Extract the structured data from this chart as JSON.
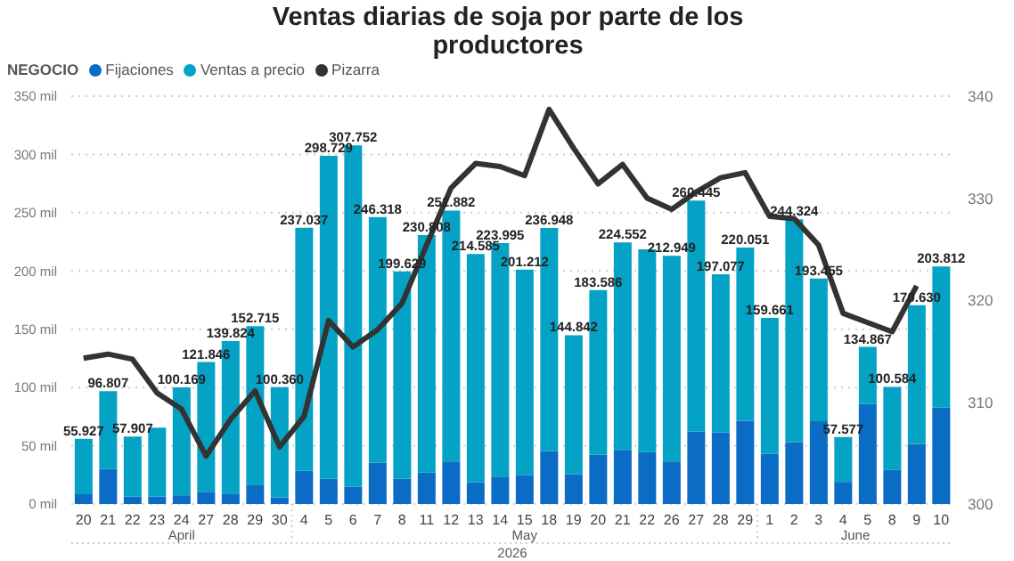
{
  "chart_data": {
    "type": "bar",
    "title": "Ventas diarias de soja por parte de los productores",
    "legend_title": "NEGOCIO",
    "legend": "top left",
    "stacked": true,
    "grid": "y",
    "marker": "none",
    "data_labels": false,
    "categories": [
      "20",
      "21",
      "22",
      "23",
      "24",
      "27",
      "28",
      "29",
      "30",
      "4",
      "5",
      "6",
      "7",
      "8",
      "11",
      "12",
      "13",
      "14",
      "15",
      "18",
      "19",
      "20",
      "21",
      "22",
      "26",
      "27",
      "28",
      "29",
      "1",
      "2",
      "3",
      "4",
      "5",
      "8",
      "9",
      "10"
    ],
    "series": [
      {
        "name": "Fijaciones",
        "color": "#0a6cc4",
        "values": [
          8.5,
          30,
          6.5,
          6.5,
          7.5,
          10.5,
          9,
          16,
          5.5,
          28.5,
          21.5,
          15,
          35.5,
          21.5,
          27,
          36.5,
          18.5,
          23.5,
          25,
          45.5,
          25.5,
          42.5,
          46.5,
          44.5,
          36.5,
          62,
          61.5,
          71.5,
          43,
          53,
          71,
          19,
          86,
          29.5,
          51.5,
          83
        ]
      },
      {
        "name": "Ventas a precio",
        "color": "#04a3c6",
        "values": [
          47.427,
          66.807,
          51.407,
          59,
          92.669,
          111.346,
          130.824,
          136.715,
          94.86,
          208.537,
          277.229,
          292.752,
          210.818,
          178.129,
          203.808,
          215.382,
          196.085,
          200.495,
          176.212,
          191.448,
          119.342,
          141.086,
          178.052,
          174,
          176.449,
          198.445,
          135.577,
          148.551,
          116.661,
          191.324,
          122.455,
          38.577,
          48.867,
          71.084,
          119.13,
          120.812
        ]
      },
      {
        "name": "Pizarra",
        "type": "line",
        "axis": "y2",
        "color": "#333333",
        "values": [
          314.3,
          314.7,
          314.2,
          310.9,
          309.3,
          304.7,
          308.3,
          311.1,
          305.6,
          308.6,
          318,
          315.4,
          317.1,
          319.7,
          325.4,
          331,
          333.4,
          333.1,
          332.2,
          338.7,
          334.9,
          331.4,
          333.3,
          330,
          328.9,
          330.6,
          332,
          332.5,
          328.2,
          328,
          325.4,
          318.7,
          317.8,
          316.9,
          321.4,
          null
        ]
      }
    ],
    "totals": [
      "55.927",
      "96.807",
      "57.907",
      null,
      "100.169",
      "121.846",
      "139.824",
      "152.715",
      "100.360",
      "237.037",
      "298.729",
      "307.752",
      "246.318",
      "199.629",
      "230.808",
      "251.882",
      "214.585",
      "223.995",
      "201.212",
      "236.948",
      "144.842",
      "183.586",
      "224.552",
      null,
      "212.949",
      "260.445",
      "197.077",
      "220.051",
      "159.661",
      "244.324",
      "193.455",
      "57.577",
      "134.867",
      "100.584",
      "170.630",
      "203.812"
    ],
    "ylim": [
      0,
      350
    ],
    "yticks": [
      {
        "value": 0,
        "label": "0 mil"
      },
      {
        "value": 50,
        "label": "50 mil"
      },
      {
        "value": 100,
        "label": "100 mil"
      },
      {
        "value": 150,
        "label": "150 mil"
      },
      {
        "value": 200,
        "label": "200 mil"
      },
      {
        "value": 250,
        "label": "250 mil"
      },
      {
        "value": 300,
        "label": "300 mil"
      },
      {
        "value": 350,
        "label": "350 mil"
      }
    ],
    "y2lim": [
      300,
      340
    ],
    "y2ticks": [
      300,
      310,
      320,
      330,
      340
    ],
    "annotations": [
      "April",
      "May",
      "June",
      "2026"
    ]
  }
}
